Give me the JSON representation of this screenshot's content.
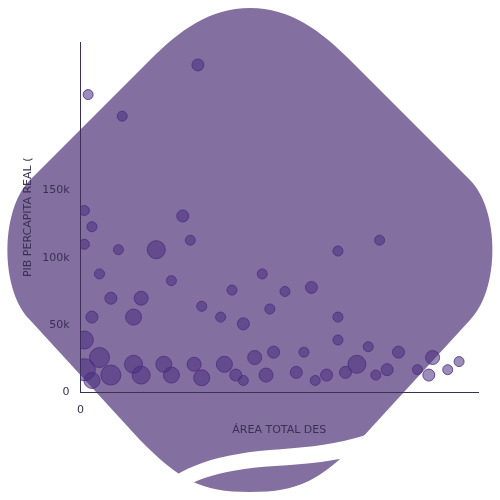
{
  "chart_data": {
    "type": "bubble",
    "x_label": "ÁREA TOTAL DES",
    "y_label": "PIB PERCAPITA REAL (",
    "xlim": [
      0,
      105
    ],
    "xticks": [
      0
    ],
    "ylim": [
      0,
      260000
    ],
    "yticks": [
      0,
      {
        "value": 50000,
        "label": "50k"
      },
      {
        "value": 100000,
        "label": "100k"
      },
      {
        "value": 150000,
        "label": "150k"
      }
    ],
    "grid": false,
    "series": [
      {
        "color": "#4b2d7f",
        "x": [
          31,
          2,
          11,
          27,
          20,
          1,
          3,
          1,
          5,
          10,
          29,
          79,
          68,
          24,
          48,
          40,
          54,
          61,
          68,
          50,
          32,
          16,
          8,
          14,
          3,
          37,
          43,
          68,
          76,
          84,
          93,
          100,
          89,
          73,
          81,
          59,
          51,
          46,
          38,
          30,
          22,
          14,
          5,
          1,
          1,
          8,
          16,
          24,
          32,
          41,
          49,
          57,
          65,
          78,
          92,
          97,
          3,
          43,
          62,
          70
        ],
        "values": [
          243000,
          221000,
          205000,
          131000,
          106000,
          135000,
          123000,
          110000,
          88000,
          106000,
          113000,
          113000,
          105000,
          83000,
          88000,
          76000,
          75000,
          78000,
          56000,
          62000,
          64000,
          70000,
          70000,
          56000,
          56000,
          56000,
          51000,
          39000,
          34000,
          30000,
          26000,
          23000,
          17000,
          21000,
          17000,
          30000,
          30000,
          26000,
          21000,
          21000,
          21000,
          21000,
          26000,
          39000,
          17000,
          13000,
          13000,
          13000,
          11000,
          13000,
          13000,
          15000,
          13000,
          13000,
          13000,
          17000,
          9000,
          9000,
          9000,
          15000
        ],
        "sizes": [
          6,
          5,
          5,
          6,
          9,
          5,
          5,
          5,
          5,
          5,
          5,
          5,
          5,
          5,
          5,
          5,
          5,
          6,
          5,
          5,
          5,
          7,
          6,
          8,
          6,
          5,
          6,
          5,
          5,
          6,
          7,
          5,
          5,
          9,
          6,
          5,
          6,
          7,
          8,
          7,
          8,
          9,
          10,
          9,
          11,
          10,
          9,
          8,
          8,
          6,
          7,
          6,
          6,
          5,
          6,
          5,
          8,
          5,
          5,
          6
        ]
      }
    ]
  }
}
